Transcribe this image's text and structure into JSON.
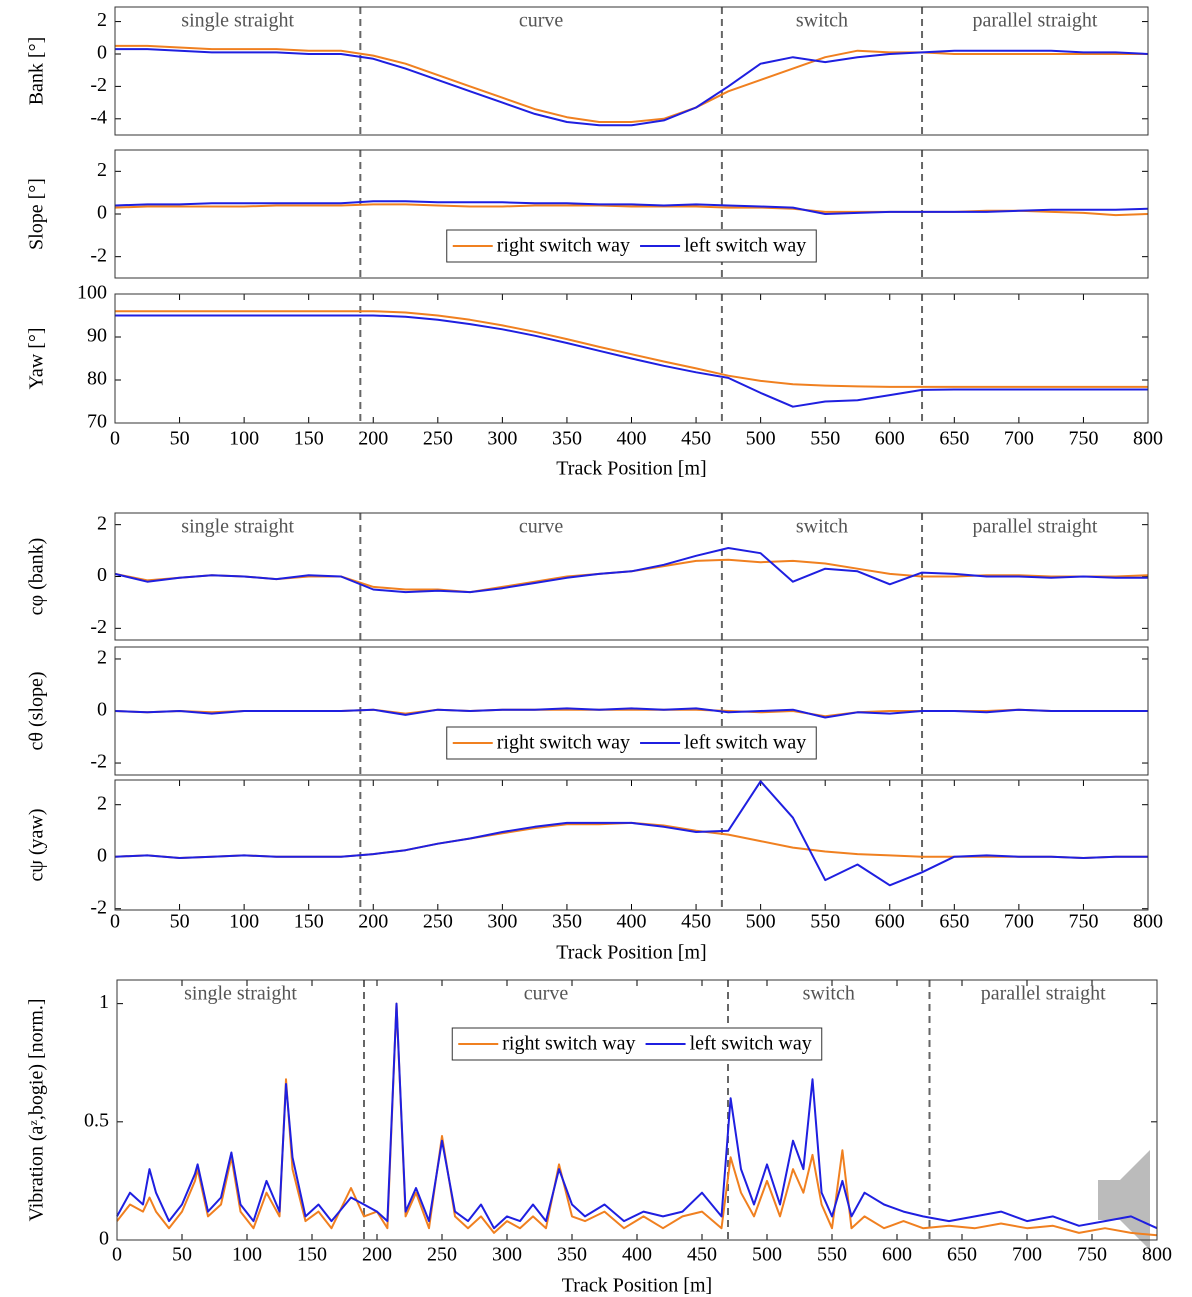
{
  "chart_data": [
    {
      "type": "line",
      "ylabel": "Bank [°]",
      "xlim": [
        0,
        800
      ],
      "ylim": [
        -5,
        2.9
      ],
      "yticks": [
        -4,
        -2,
        0,
        2
      ],
      "sections": [
        "single straight",
        "curve",
        "switch",
        "parallel straight"
      ],
      "vlines": [
        190,
        470,
        625
      ],
      "x": [
        0,
        25,
        50,
        75,
        100,
        125,
        150,
        175,
        200,
        225,
        250,
        275,
        300,
        325,
        350,
        375,
        400,
        425,
        450,
        475,
        500,
        525,
        550,
        575,
        600,
        625,
        650,
        675,
        700,
        725,
        750,
        775,
        800
      ],
      "series": [
        {
          "name": "right switch way",
          "color": "#f08020",
          "values": [
            0.5,
            0.5,
            0.4,
            0.3,
            0.3,
            0.3,
            0.2,
            0.2,
            -0.1,
            -0.6,
            -1.3,
            -2.0,
            -2.7,
            -3.4,
            -3.9,
            -4.2,
            -4.2,
            -4.0,
            -3.3,
            -2.3,
            -1.6,
            -0.9,
            -0.2,
            0.2,
            0.1,
            0.1,
            0.0,
            0.0,
            0.0,
            0.0,
            0.0,
            0.0,
            0.0
          ]
        },
        {
          "name": "left switch way",
          "color": "#1f1fe0",
          "values": [
            0.3,
            0.3,
            0.2,
            0.1,
            0.1,
            0.1,
            0.0,
            0.0,
            -0.3,
            -0.9,
            -1.6,
            -2.3,
            -3.0,
            -3.7,
            -4.2,
            -4.4,
            -4.4,
            -4.1,
            -3.3,
            -2.0,
            -0.6,
            -0.2,
            -0.5,
            -0.2,
            0.0,
            0.1,
            0.2,
            0.2,
            0.2,
            0.2,
            0.1,
            0.1,
            0.0
          ]
        }
      ]
    },
    {
      "type": "line",
      "ylabel": "Slope [°]",
      "xlim": [
        0,
        800
      ],
      "ylim": [
        -3,
        3
      ],
      "yticks": [
        -2,
        0,
        2
      ],
      "vlines": [
        190,
        470,
        625
      ],
      "legend": "lower center",
      "x": [
        0,
        25,
        50,
        75,
        100,
        125,
        150,
        175,
        200,
        225,
        250,
        275,
        300,
        325,
        350,
        375,
        400,
        425,
        450,
        475,
        500,
        525,
        550,
        575,
        600,
        625,
        650,
        675,
        700,
        725,
        750,
        775,
        800
      ],
      "series": [
        {
          "name": "right switch way",
          "color": "#f08020",
          "values": [
            0.3,
            0.35,
            0.35,
            0.35,
            0.35,
            0.4,
            0.4,
            0.4,
            0.45,
            0.45,
            0.4,
            0.35,
            0.35,
            0.4,
            0.4,
            0.4,
            0.35,
            0.35,
            0.35,
            0.3,
            0.3,
            0.25,
            0.1,
            0.1,
            0.1,
            0.1,
            0.1,
            0.15,
            0.15,
            0.1,
            0.05,
            -0.05,
            0.0
          ]
        },
        {
          "name": "left switch way",
          "color": "#1f1fe0",
          "values": [
            0.4,
            0.45,
            0.45,
            0.5,
            0.5,
            0.5,
            0.5,
            0.5,
            0.6,
            0.6,
            0.55,
            0.55,
            0.55,
            0.5,
            0.5,
            0.45,
            0.45,
            0.4,
            0.45,
            0.4,
            0.35,
            0.3,
            0.0,
            0.05,
            0.1,
            0.1,
            0.1,
            0.1,
            0.15,
            0.2,
            0.2,
            0.2,
            0.25
          ]
        }
      ]
    },
    {
      "type": "line",
      "ylabel": "Yaw [°]",
      "xlabel": "Track Position [m]",
      "xlim": [
        0,
        800
      ],
      "ylim": [
        70,
        100
      ],
      "yticks": [
        70,
        80,
        90,
        100
      ],
      "xticks": [
        0,
        50,
        100,
        150,
        200,
        250,
        300,
        350,
        400,
        450,
        500,
        550,
        600,
        650,
        700,
        750,
        800
      ],
      "vlines": [
        190,
        470,
        625
      ],
      "x": [
        0,
        25,
        50,
        75,
        100,
        125,
        150,
        175,
        200,
        225,
        250,
        275,
        300,
        325,
        350,
        375,
        400,
        425,
        450,
        475,
        500,
        525,
        550,
        575,
        600,
        625,
        650,
        675,
        700,
        725,
        750,
        775,
        800
      ],
      "series": [
        {
          "name": "right switch way",
          "color": "#f08020",
          "values": [
            96,
            96,
            96,
            96,
            96,
            96,
            96,
            96,
            96,
            95.7,
            95,
            94,
            92.7,
            91.2,
            89.5,
            87.7,
            86,
            84.3,
            82.7,
            81,
            79.8,
            79,
            78.7,
            78.5,
            78.4,
            78.4,
            78.4,
            78.4,
            78.4,
            78.4,
            78.4,
            78.4,
            78.4
          ]
        },
        {
          "name": "left switch way",
          "color": "#1f1fe0",
          "values": [
            95,
            95,
            95,
            95,
            95,
            95,
            95,
            95,
            95,
            94.7,
            94,
            93,
            91.8,
            90.3,
            88.6,
            86.8,
            85,
            83.3,
            81.8,
            80.5,
            77,
            73.8,
            75,
            75.3,
            76.5,
            77.7,
            77.8,
            77.8,
            77.8,
            77.8,
            77.8,
            77.8,
            77.8
          ]
        }
      ]
    },
    {
      "type": "line",
      "ylabel": "cφ (bank)",
      "xlim": [
        0,
        800
      ],
      "ylim": [
        -2.45,
        2.45
      ],
      "yticks": [
        -2,
        0,
        2
      ],
      "sections": [
        "single straight",
        "curve",
        "switch",
        "parallel straight"
      ],
      "vlines": [
        190,
        470,
        625
      ],
      "x": [
        0,
        25,
        50,
        75,
        100,
        125,
        150,
        175,
        200,
        225,
        250,
        275,
        300,
        325,
        350,
        375,
        400,
        425,
        450,
        475,
        500,
        525,
        550,
        575,
        600,
        625,
        650,
        675,
        700,
        725,
        750,
        775,
        800
      ],
      "series": [
        {
          "name": "right switch way",
          "color": "#f08020",
          "values": [
            0.1,
            -0.15,
            -0.05,
            0.05,
            0.0,
            -0.1,
            0.0,
            0.0,
            -0.4,
            -0.5,
            -0.5,
            -0.6,
            -0.4,
            -0.2,
            0.0,
            0.1,
            0.2,
            0.4,
            0.6,
            0.65,
            0.55,
            0.6,
            0.5,
            0.3,
            0.1,
            0.0,
            0.0,
            0.05,
            0.05,
            0.0,
            0.0,
            0.0,
            0.05
          ]
        },
        {
          "name": "left switch way",
          "color": "#1f1fe0",
          "values": [
            0.1,
            -0.2,
            -0.05,
            0.05,
            0.0,
            -0.1,
            0.05,
            0.0,
            -0.5,
            -0.6,
            -0.55,
            -0.6,
            -0.45,
            -0.25,
            -0.05,
            0.1,
            0.2,
            0.45,
            0.8,
            1.1,
            0.9,
            -0.2,
            0.3,
            0.2,
            -0.3,
            0.15,
            0.1,
            0.0,
            0.0,
            -0.05,
            0.0,
            -0.05,
            -0.05
          ]
        }
      ]
    },
    {
      "type": "line",
      "ylabel": "cθ (slope)",
      "xlim": [
        0,
        800
      ],
      "ylim": [
        -2.46,
        2.46
      ],
      "yticks": [
        -2,
        0,
        2
      ],
      "vlines": [
        190,
        470,
        625
      ],
      "legend": "lower center",
      "x": [
        0,
        25,
        50,
        75,
        100,
        125,
        150,
        175,
        200,
        225,
        250,
        275,
        300,
        325,
        350,
        375,
        400,
        425,
        450,
        475,
        500,
        525,
        550,
        575,
        600,
        625,
        650,
        675,
        700,
        725,
        750,
        775,
        800
      ],
      "series": [
        {
          "name": "right switch way",
          "color": "#f08020",
          "values": [
            0,
            -0.05,
            0,
            -0.05,
            0,
            0,
            0,
            0,
            0.05,
            -0.1,
            0.05,
            0,
            0.05,
            0.05,
            0.05,
            0.05,
            0.05,
            0.05,
            0.05,
            0,
            -0.05,
            0,
            -0.2,
            -0.05,
            0,
            0,
            0,
            0,
            0.05,
            0,
            0,
            0,
            0
          ]
        },
        {
          "name": "left switch way",
          "color": "#1f1fe0",
          "values": [
            0,
            -0.05,
            0,
            -0.1,
            0,
            0,
            0,
            0,
            0.05,
            -0.15,
            0.05,
            0,
            0.05,
            0.05,
            0.1,
            0.05,
            0.1,
            0.05,
            0.1,
            -0.05,
            0,
            0.05,
            -0.25,
            -0.05,
            -0.1,
            0,
            0,
            -0.05,
            0.05,
            0,
            0,
            0,
            0
          ]
        }
      ]
    },
    {
      "type": "line",
      "ylabel": "cψ (yaw)",
      "xlabel": "Track Position [m]",
      "xlim": [
        0,
        800
      ],
      "ylim": [
        -2.05,
        2.95
      ],
      "yticks": [
        -2,
        0,
        2
      ],
      "xticks": [
        0,
        50,
        100,
        150,
        200,
        250,
        300,
        350,
        400,
        450,
        500,
        550,
        600,
        650,
        700,
        750,
        800
      ],
      "vlines": [
        190,
        470,
        625
      ],
      "x": [
        0,
        25,
        50,
        75,
        100,
        125,
        150,
        175,
        200,
        225,
        250,
        275,
        300,
        325,
        350,
        375,
        400,
        425,
        450,
        475,
        500,
        525,
        550,
        575,
        600,
        625,
        650,
        675,
        700,
        725,
        750,
        775,
        800
      ],
      "series": [
        {
          "name": "right switch way",
          "color": "#f08020",
          "values": [
            0,
            0.05,
            -0.05,
            0,
            0.05,
            0,
            0,
            0,
            0.1,
            0.25,
            0.5,
            0.7,
            0.9,
            1.1,
            1.25,
            1.25,
            1.3,
            1.2,
            1.0,
            0.85,
            0.6,
            0.35,
            0.2,
            0.1,
            0.05,
            0,
            0,
            0,
            0,
            0,
            -0.05,
            0,
            0
          ]
        },
        {
          "name": "left switch way",
          "color": "#1f1fe0",
          "values": [
            0,
            0.05,
            -0.05,
            0,
            0.05,
            0,
            0,
            0,
            0.1,
            0.25,
            0.5,
            0.7,
            0.95,
            1.15,
            1.3,
            1.3,
            1.3,
            1.15,
            0.95,
            1.0,
            2.9,
            1.5,
            -0.9,
            -0.3,
            -1.1,
            -0.6,
            0.0,
            0.05,
            0,
            0,
            -0.05,
            0,
            0
          ]
        }
      ]
    },
    {
      "type": "line",
      "ylabel": "Vibration (aᶻ,bogie) [norm.]",
      "xlabel": "Track Position [m]",
      "xlim": [
        0,
        800
      ],
      "ylim": [
        0,
        1.1
      ],
      "yticks": [
        0,
        0.5,
        1
      ],
      "xticks": [
        0,
        50,
        100,
        150,
        200,
        250,
        300,
        350,
        400,
        450,
        500,
        550,
        600,
        650,
        700,
        750,
        800
      ],
      "vlines": [
        190,
        470,
        625
      ],
      "legend": "upper center",
      "sections": [
        "single straight",
        "curve",
        "switch",
        "parallel straight"
      ],
      "x": [
        0,
        10,
        20,
        25,
        30,
        40,
        50,
        60,
        62,
        70,
        80,
        88,
        95,
        105,
        115,
        125,
        130,
        135,
        145,
        155,
        165,
        180,
        190,
        200,
        208,
        215,
        222,
        230,
        240,
        250,
        260,
        270,
        280,
        290,
        300,
        310,
        320,
        330,
        340,
        350,
        360,
        375,
        390,
        405,
        420,
        435,
        450,
        465,
        472,
        480,
        490,
        500,
        510,
        520,
        528,
        535,
        542,
        550,
        558,
        565,
        575,
        590,
        605,
        620,
        640,
        660,
        680,
        700,
        720,
        740,
        760,
        780,
        800
      ],
      "series": [
        {
          "name": "right switch way",
          "color": "#f08020",
          "values": [
            0.08,
            0.15,
            0.12,
            0.18,
            0.12,
            0.05,
            0.12,
            0.25,
            0.3,
            0.1,
            0.15,
            0.35,
            0.12,
            0.05,
            0.2,
            0.1,
            0.68,
            0.3,
            0.08,
            0.12,
            0.05,
            0.22,
            0.1,
            0.12,
            0.05,
            1.0,
            0.1,
            0.2,
            0.05,
            0.44,
            0.1,
            0.05,
            0.1,
            0.03,
            0.08,
            0.05,
            0.1,
            0.05,
            0.32,
            0.1,
            0.08,
            0.12,
            0.05,
            0.1,
            0.05,
            0.1,
            0.12,
            0.05,
            0.35,
            0.2,
            0.1,
            0.25,
            0.1,
            0.3,
            0.2,
            0.36,
            0.15,
            0.05,
            0.38,
            0.05,
            0.1,
            0.05,
            0.08,
            0.05,
            0.06,
            0.05,
            0.07,
            0.05,
            0.06,
            0.03,
            0.05,
            0.03,
            0.02
          ]
        },
        {
          "name": "left switch way",
          "color": "#1f1fe0",
          "values": [
            0.1,
            0.2,
            0.15,
            0.3,
            0.2,
            0.08,
            0.15,
            0.28,
            0.32,
            0.12,
            0.18,
            0.37,
            0.15,
            0.08,
            0.25,
            0.12,
            0.66,
            0.35,
            0.1,
            0.15,
            0.08,
            0.18,
            0.15,
            0.12,
            0.08,
            1.0,
            0.12,
            0.22,
            0.08,
            0.42,
            0.12,
            0.08,
            0.15,
            0.05,
            0.1,
            0.08,
            0.15,
            0.08,
            0.3,
            0.15,
            0.1,
            0.15,
            0.08,
            0.12,
            0.1,
            0.12,
            0.2,
            0.1,
            0.6,
            0.3,
            0.15,
            0.32,
            0.15,
            0.42,
            0.3,
            0.68,
            0.2,
            0.1,
            0.25,
            0.1,
            0.2,
            0.15,
            0.12,
            0.1,
            0.08,
            0.1,
            0.12,
            0.08,
            0.1,
            0.06,
            0.08,
            0.1,
            0.05
          ]
        }
      ]
    }
  ]
}
